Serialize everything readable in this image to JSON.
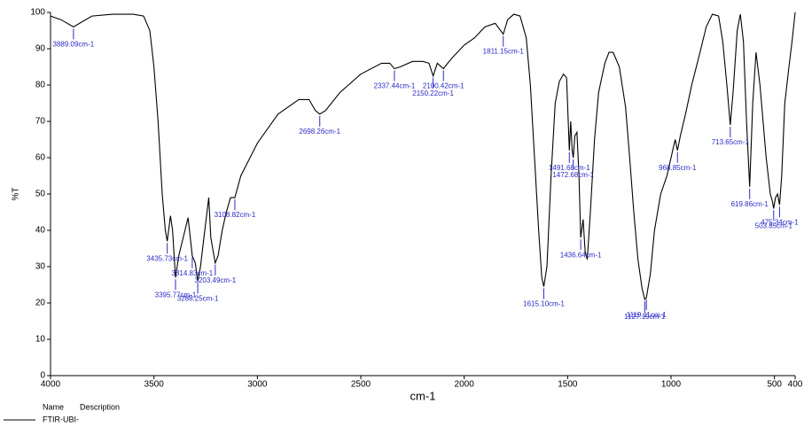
{
  "chart_data": {
    "type": "line",
    "xlabel": "cm-1",
    "ylabel": "%T",
    "xlim": [
      4000,
      400
    ],
    "ylim": [
      0,
      100
    ],
    "xticks": [
      4000,
      3500,
      3000,
      2500,
      2000,
      1500,
      1000,
      500,
      400
    ],
    "yticks": [
      0,
      10,
      20,
      30,
      40,
      50,
      60,
      70,
      80,
      90,
      100
    ],
    "legend_headers": [
      "Name",
      "Description"
    ],
    "x": [
      4000,
      3950,
      3889.09,
      3800,
      3700,
      3600,
      3550,
      3520,
      3500,
      3480,
      3460,
      3445,
      3435.73,
      3420,
      3410,
      3395.77,
      3380,
      3350,
      3335,
      3314.83,
      3300,
      3288.25,
      3275,
      3250,
      3235,
      3225,
      3210,
      3203.49,
      3190,
      3170,
      3150,
      3130,
      3108.82,
      3080,
      3000,
      2900,
      2800,
      2750,
      2720,
      2698.26,
      2670,
      2600,
      2500,
      2400,
      2360,
      2337.44,
      2310,
      2250,
      2200,
      2170,
      2150.22,
      2130,
      2100.42,
      2080,
      2050,
      2000,
      1950,
      1900,
      1850,
      1811.15,
      1790,
      1760,
      1730,
      1700,
      1680,
      1660,
      1640,
      1625,
      1615.1,
      1600,
      1580,
      1560,
      1540,
      1520,
      1505,
      1491.68,
      1485,
      1478,
      1472.68,
      1465,
      1455,
      1445,
      1436.64,
      1425,
      1415,
      1405,
      1390,
      1370,
      1350,
      1320,
      1300,
      1280,
      1250,
      1220,
      1200,
      1180,
      1160,
      1140,
      1127.19,
      1119.11,
      1100,
      1080,
      1050,
      1020,
      1000,
      980,
      968.85,
      955,
      930,
      900,
      860,
      830,
      800,
      770,
      750,
      730,
      713.65,
      700,
      680,
      665,
      650,
      635,
      619.86,
      605,
      589,
      570,
      540,
      520,
      510,
      503.85,
      495,
      485,
      475.34,
      465,
      450,
      430,
      415,
      400
    ],
    "series": [
      {
        "name": "FTIR-UBI-",
        "color": "#000000",
        "values": [
          99,
          98,
          96,
          99,
          99.5,
          99.5,
          99,
          95,
          85,
          70,
          50,
          40,
          37,
          44,
          40,
          27,
          33,
          40,
          43.5,
          33,
          31,
          26,
          30,
          42,
          49,
          38,
          33,
          31,
          33,
          40,
          45,
          49,
          49,
          55,
          64,
          72,
          76,
          76,
          73,
          72,
          73,
          78,
          83,
          86,
          86,
          84.5,
          85,
          86.5,
          86.5,
          86,
          82.5,
          86,
          84.5,
          86,
          88,
          91,
          93,
          96,
          97,
          94,
          98,
          99.5,
          99,
          93,
          80,
          60,
          40,
          27,
          24.5,
          30,
          55,
          75,
          81,
          83,
          82,
          62,
          70,
          62,
          60,
          66,
          67,
          55,
          38,
          43,
          34,
          32,
          45,
          65,
          78,
          86,
          89,
          89,
          85,
          74,
          60,
          45,
          32,
          24,
          21,
          21.5,
          28,
          40,
          50,
          55,
          60,
          65,
          62,
          66,
          72,
          80,
          89,
          96,
          99.5,
          99,
          92,
          80,
          69,
          78,
          95,
          99.5,
          92,
          70,
          52,
          75,
          89,
          80,
          60,
          50,
          48,
          46,
          49,
          50,
          47,
          55,
          75,
          85,
          92,
          100
        ]
      }
    ],
    "peaks": [
      {
        "x": 3889.09,
        "y": 96,
        "label": "3889.09cm-1"
      },
      {
        "x": 3435.73,
        "y": 37,
        "label": "3435.73cm-1"
      },
      {
        "x": 3395.77,
        "y": 27,
        "label": "3395.77cm-1"
      },
      {
        "x": 3314.83,
        "y": 33,
        "label": "3314.83cm-1"
      },
      {
        "x": 3288.25,
        "y": 26,
        "label": "3288.25cm-1"
      },
      {
        "x": 3203.49,
        "y": 31,
        "label": "3203.49cm-1"
      },
      {
        "x": 3108.82,
        "y": 49,
        "label": "3108.82cm-1"
      },
      {
        "x": 2698.26,
        "y": 72,
        "label": "2698.26cm-1"
      },
      {
        "x": 2337.44,
        "y": 84.5,
        "label": "2337.44cm-1"
      },
      {
        "x": 2150.22,
        "y": 82.5,
        "label": "2150.22cm-1"
      },
      {
        "x": 2100.42,
        "y": 84.5,
        "label": "2100.42cm-1"
      },
      {
        "x": 1811.15,
        "y": 94,
        "label": "1811.15cm-1"
      },
      {
        "x": 1615.1,
        "y": 24.5,
        "label": "1615.10cm-1"
      },
      {
        "x": 1491.68,
        "y": 62,
        "label": "1491.68cm-1"
      },
      {
        "x": 1472.68,
        "y": 60,
        "label": "1472.68cm-1"
      },
      {
        "x": 1436.64,
        "y": 38,
        "label": "1436.64cm-1"
      },
      {
        "x": 1127.19,
        "y": 21,
        "label": "1127.19cm-1"
      },
      {
        "x": 1119.11,
        "y": 21.5,
        "label": "1119.11cm-1"
      },
      {
        "x": 968.85,
        "y": 62,
        "label": "968.85cm-1"
      },
      {
        "x": 713.65,
        "y": 69,
        "label": "713.65cm-1"
      },
      {
        "x": 619.86,
        "y": 52,
        "label": "619.86cm-1"
      },
      {
        "x": 503.85,
        "y": 46,
        "label": "503.85cm-1"
      },
      {
        "x": 475.34,
        "y": 47,
        "label": "475.34cm-1"
      }
    ]
  }
}
